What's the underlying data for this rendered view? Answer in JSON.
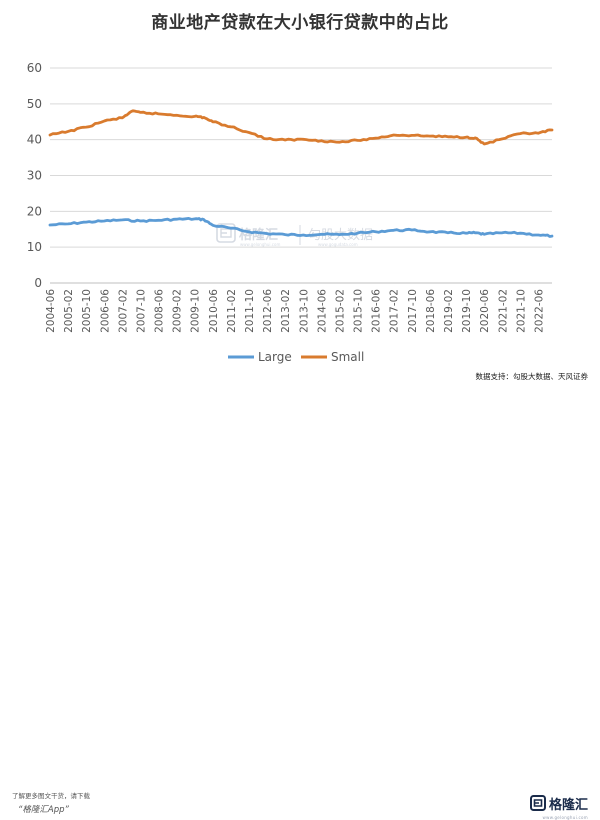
{
  "chart_data": {
    "type": "line",
    "title": "商业地产贷款在大小银行贷款中的占比",
    "xlabel": "",
    "ylabel": "",
    "ylim": [
      0,
      60
    ],
    "yticks": [
      0,
      10,
      20,
      30,
      40,
      50,
      60
    ],
    "xticks": [
      "2004-06",
      "2005-02",
      "2005-10",
      "2006-06",
      "2007-02",
      "2007-10",
      "2008-06",
      "2009-02",
      "2009-10",
      "2010-06",
      "2011-02",
      "2011-10",
      "2012-06",
      "2013-02",
      "2013-10",
      "2014-06",
      "2015-02",
      "2015-10",
      "2016-06",
      "2017-02",
      "2017-10",
      "2018-06",
      "2019-02",
      "2019-10",
      "2020-06",
      "2021-02",
      "2021-10",
      "2022-06"
    ],
    "grid": "horizontal",
    "legend_position": "bottom",
    "series": [
      {
        "name": "Large",
        "color": "#5b9bd5",
        "x": [
          "2004-06",
          "2005-02",
          "2005-10",
          "2006-06",
          "2007-02",
          "2007-10",
          "2008-06",
          "2009-02",
          "2009-10",
          "2010-02",
          "2010-06",
          "2011-02",
          "2011-10",
          "2012-06",
          "2013-02",
          "2013-10",
          "2014-06",
          "2015-02",
          "2015-10",
          "2016-06",
          "2017-02",
          "2017-10",
          "2018-06",
          "2019-02",
          "2019-10",
          "2020-02",
          "2020-06",
          "2021-02",
          "2021-10",
          "2022-06",
          "2022-12"
        ],
        "values": [
          16.2,
          16.5,
          17.0,
          17.3,
          17.6,
          17.3,
          17.5,
          17.8,
          17.9,
          17.7,
          16.1,
          15.3,
          14.3,
          13.8,
          13.5,
          13.4,
          13.6,
          13.5,
          13.9,
          14.3,
          14.7,
          14.8,
          14.3,
          14.0,
          13.9,
          14.0,
          13.6,
          14.0,
          13.9,
          13.4,
          13.1
        ]
      },
      {
        "name": "Small",
        "color": "#d97b2e",
        "x": [
          "2004-06",
          "2005-02",
          "2005-10",
          "2006-06",
          "2007-02",
          "2007-06",
          "2007-10",
          "2008-06",
          "2009-02",
          "2009-10",
          "2010-02",
          "2010-06",
          "2011-02",
          "2011-10",
          "2012-06",
          "2013-02",
          "2013-10",
          "2014-06",
          "2015-02",
          "2015-10",
          "2016-06",
          "2017-02",
          "2017-10",
          "2018-06",
          "2019-02",
          "2019-10",
          "2020-02",
          "2020-06",
          "2021-02",
          "2021-10",
          "2022-06",
          "2022-12"
        ],
        "values": [
          41.3,
          42.3,
          43.5,
          45.2,
          46.1,
          47.9,
          47.6,
          47.2,
          46.8,
          46.5,
          46.2,
          45.0,
          43.6,
          42.0,
          40.2,
          39.9,
          40.1,
          39.7,
          39.3,
          39.8,
          40.4,
          41.3,
          41.2,
          41.0,
          40.8,
          40.7,
          40.5,
          38.8,
          40.2,
          41.7,
          41.8,
          42.7
        ]
      }
    ]
  },
  "source": "数据支持：勾股大数据、天风证券",
  "watermark": {
    "logo_text": "格隆汇",
    "logo_url": "www.gelonghui.com",
    "brand_text": "勾股大数据",
    "brand_url": "www.gogudata.com"
  },
  "footer": {
    "promo": "了解更多图文干货，请下载",
    "app_name": "“格隆汇App”",
    "brand": "格隆汇",
    "brand_sub": "www.gelonghui.com"
  }
}
